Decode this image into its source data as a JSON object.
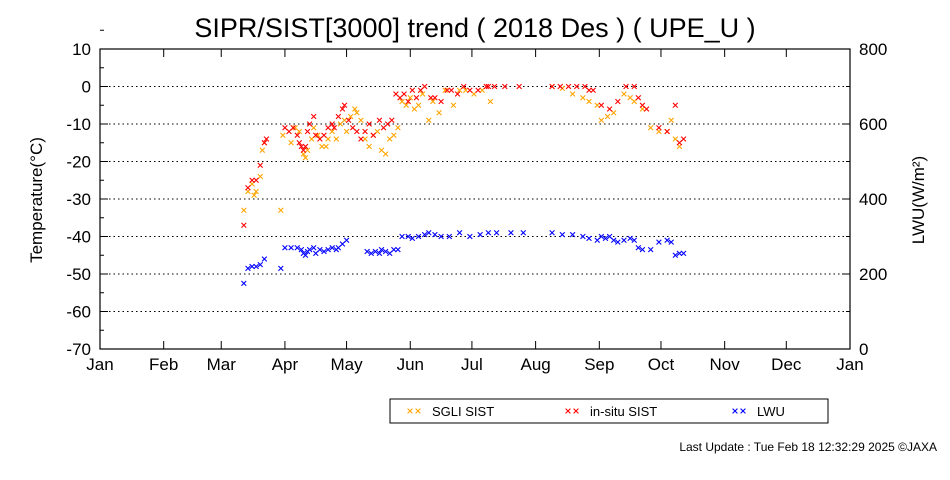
{
  "chart_data": {
    "type": "scatter",
    "title": "SIPR/SIST[3000] trend ( 2018 Des ) ( UPE_U )",
    "ylabel": "Temperature(°C)",
    "y2label": "LWU(W/m²)",
    "ylim": [
      -70,
      10
    ],
    "y2lim": [
      0,
      800
    ],
    "yticks": [
      "10",
      "0",
      "-10",
      "-20",
      "-30",
      "-40",
      "-50",
      "-60",
      "-70"
    ],
    "y2ticks": [
      "800",
      "600",
      "400",
      "200",
      "0"
    ],
    "x_month_labels": [
      "Jan",
      "Feb",
      "Mar",
      "Apr",
      "May",
      "Jun",
      "Jul",
      "Aug",
      "Sep",
      "Oct",
      "Nov",
      "Dec",
      "Jan"
    ],
    "grid": "horizontal dotted",
    "colors": {
      "sgli": "#ffa500",
      "insitu": "#ff0000",
      "lwu": "#0000ff"
    },
    "series": [
      {
        "name": "SGLI SIST",
        "axis": "left",
        "x": [
          70,
          72,
          74,
          75,
          76,
          78,
          79,
          80,
          88,
          89,
          93,
          95,
          97,
          99,
          100,
          101,
          103,
          104,
          106,
          108,
          110,
          111,
          113,
          115,
          117,
          119,
          120,
          122,
          124,
          125,
          127,
          129,
          131,
          133,
          135,
          137,
          139,
          141,
          143,
          145,
          147,
          149,
          151,
          153,
          155,
          157,
          160,
          162,
          165,
          168,
          172,
          175,
          178,
          182,
          186,
          190,
          220,
          225,
          230,
          235,
          238,
          242,
          244,
          247,
          250,
          255,
          258,
          260,
          264,
          268,
          272,
          276,
          278,
          280,
          282
        ],
        "y": [
          -33,
          -28,
          -26,
          -29,
          -28,
          -24,
          -17,
          -15,
          -33,
          -13,
          -15,
          -11,
          -12,
          -18,
          -19,
          -17,
          -14,
          -11,
          -13,
          -16,
          -16,
          -14,
          -12,
          -14,
          -10,
          -9,
          -12,
          -8,
          -6,
          -7,
          -9,
          -14,
          -16,
          -13,
          -12,
          -17,
          -18,
          -14,
          -13,
          -11,
          -4,
          -5,
          -3,
          -6,
          -5,
          -2,
          -9,
          -4,
          -7,
          -1,
          -5,
          -1,
          -1,
          -2,
          -1,
          -4,
          0,
          -0.5,
          -2,
          -3,
          -4,
          -5,
          -9,
          -8,
          -7,
          -2,
          -3,
          -4,
          -6,
          -11,
          -12,
          -12,
          -9,
          -14,
          -16
        ]
      },
      {
        "name": "in-situ SIST",
        "axis": "left",
        "x": [
          70,
          72,
          74,
          76,
          78,
          80,
          81,
          90,
          92,
          94,
          96,
          97,
          98,
          99,
          100,
          101,
          102,
          104,
          105,
          107,
          109,
          111,
          113,
          114,
          116,
          118,
          119,
          121,
          123,
          125,
          127,
          129,
          131,
          133,
          136,
          138,
          140,
          142,
          144,
          146,
          148,
          150,
          152,
          154,
          156,
          158,
          161,
          163,
          166,
          169,
          171,
          174,
          177,
          180,
          184,
          188,
          189,
          192,
          197,
          204,
          220,
          224,
          228,
          232,
          236,
          238,
          240,
          244,
          248,
          252,
          256,
          260,
          262,
          264,
          266,
          272,
          276,
          280,
          282,
          284
        ],
        "y": [
          -37,
          -27,
          -25,
          -25,
          -21,
          -15,
          -14,
          -11,
          -12,
          -11,
          -13,
          -15,
          -16,
          -17,
          -16,
          -12,
          -10,
          -8,
          -13,
          -14,
          -13,
          -11,
          -10,
          -11,
          -8,
          -6,
          -5,
          -9,
          -11,
          -12,
          -14,
          -12,
          -10,
          -13,
          -9,
          -11,
          -10,
          -9,
          -2,
          -3,
          -2,
          -4,
          -1,
          -3,
          -1,
          0,
          -3,
          -3,
          -4,
          -1,
          -1,
          -2,
          0,
          -1,
          -1,
          0,
          0,
          0,
          0,
          0,
          0,
          0,
          0,
          0,
          0,
          -1,
          -1,
          -5,
          -6,
          -4,
          0,
          0,
          -3,
          -5,
          -6,
          -11,
          -12,
          -5,
          -15,
          -14
        ]
      },
      {
        "name": "LWU",
        "axis": "right",
        "x": [
          70,
          72,
          74,
          76,
          78,
          80,
          88,
          90,
          93,
          96,
          98,
          99,
          100,
          101,
          102,
          104,
          105,
          107,
          109,
          111,
          113,
          115,
          116,
          118,
          120,
          130,
          132,
          134,
          136,
          137,
          139,
          141,
          143,
          145,
          147,
          150,
          152,
          155,
          158,
          160,
          163,
          166,
          170,
          175,
          180,
          185,
          189,
          193,
          200,
          206,
          220,
          225,
          230,
          235,
          238,
          242,
          244,
          246,
          248,
          250,
          252,
          255,
          258,
          260,
          262,
          264,
          268,
          272,
          276,
          278,
          280,
          282,
          284
        ],
        "y": [
          175,
          215,
          220,
          220,
          225,
          240,
          215,
          270,
          270,
          270,
          265,
          255,
          250,
          260,
          265,
          270,
          255,
          265,
          260,
          265,
          270,
          265,
          270,
          280,
          290,
          260,
          255,
          260,
          255,
          265,
          260,
          255,
          265,
          265,
          300,
          300,
          295,
          300,
          305,
          310,
          305,
          300,
          300,
          310,
          300,
          305,
          310,
          310,
          310,
          310,
          310,
          305,
          305,
          300,
          295,
          290,
          300,
          295,
          300,
          290,
          285,
          290,
          295,
          290,
          270,
          265,
          265,
          285,
          290,
          285,
          250,
          255,
          255
        ]
      }
    ]
  },
  "legend": {
    "items": [
      {
        "label": "SGLI SIST",
        "color": "#ffa500"
      },
      {
        "label": "in-situ SIST",
        "color": "#ff0000"
      },
      {
        "label": "LWU",
        "color": "#0000ff"
      }
    ]
  },
  "footer": {
    "text": "Last Update : Tue Feb 18 12:32:29 2025  ©JAXA"
  }
}
